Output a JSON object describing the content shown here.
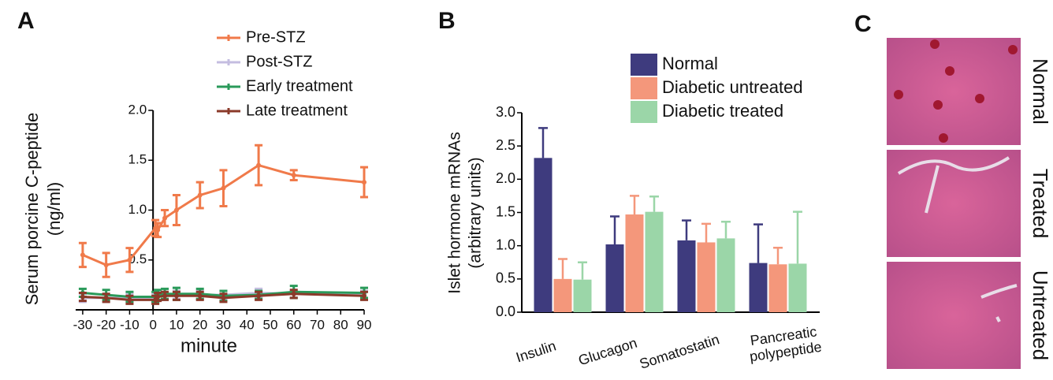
{
  "chart_data": [
    {
      "panel": "A",
      "type": "line",
      "ylabel": [
        "Serum porcine C-peptide",
        "(ng/ml)"
      ],
      "xlabel": "minute",
      "x": [
        -30,
        -20,
        -10,
        1,
        2,
        5,
        10,
        20,
        30,
        45,
        60,
        90
      ],
      "xlim": [
        -33,
        90
      ],
      "xticks": [
        -30,
        -20,
        -10,
        0,
        10,
        20,
        30,
        40,
        50,
        60,
        70,
        80,
        90
      ],
      "ylim": [
        0,
        2
      ],
      "yticks": [
        0.5,
        {
          "value": 1,
          "label": "1.0"
        },
        1.5,
        {
          "value": 2,
          "label": "2.0"
        }
      ],
      "legend": "upper right",
      "series": [
        {
          "name": "Pre-STZ",
          "color": "#f07a4a",
          "values": [
            0.55,
            0.45,
            0.5,
            0.82,
            0.8,
            0.92,
            1.0,
            1.15,
            1.22,
            1.45,
            1.35,
            1.28
          ],
          "errors": [
            0.12,
            0.12,
            0.12,
            0.08,
            0.07,
            0.08,
            0.15,
            0.13,
            0.18,
            0.2,
            0.05,
            0.15
          ]
        },
        {
          "name": "Post-STZ",
          "color": "#c4bde0",
          "values": [
            0.12,
            0.12,
            0.12,
            0.12,
            0.14,
            0.14,
            0.15,
            0.15,
            0.15,
            0.17,
            0.16,
            0.15
          ],
          "errors": [
            0.04,
            0.04,
            0.04,
            0.04,
            0.04,
            0.04,
            0.04,
            0.04,
            0.04,
            0.04,
            0.04,
            0.04
          ]
        },
        {
          "name": "Early treatment",
          "color": "#2a9a5a",
          "values": [
            0.17,
            0.15,
            0.13,
            0.13,
            0.15,
            0.16,
            0.16,
            0.16,
            0.14,
            0.15,
            0.18,
            0.17
          ],
          "errors": [
            0.04,
            0.05,
            0.05,
            0.05,
            0.05,
            0.05,
            0.06,
            0.05,
            0.05,
            0.04,
            0.06,
            0.05
          ]
        },
        {
          "name": "Late treatment",
          "color": "#8b3a2a",
          "values": [
            0.13,
            0.12,
            0.1,
            0.1,
            0.13,
            0.14,
            0.14,
            0.14,
            0.12,
            0.14,
            0.16,
            0.14
          ],
          "errors": [
            0.04,
            0.04,
            0.04,
            0.04,
            0.04,
            0.04,
            0.04,
            0.04,
            0.04,
            0.04,
            0.04,
            0.04
          ]
        }
      ]
    },
    {
      "panel": "B",
      "type": "bar",
      "ylabel": [
        "Islet hormone mRNAs",
        "(arbitrary units)"
      ],
      "categories": [
        "Insulin",
        "Glucagon",
        "Somatostatin",
        "Pancreatic polypeptide"
      ],
      "ylim": [
        0,
        3
      ],
      "yticks": [
        {
          "value": 0,
          "label": "0.0"
        },
        0.5,
        {
          "value": 1,
          "label": "1.0"
        },
        1.5,
        {
          "value": 2,
          "label": "2.0"
        },
        2.5,
        {
          "value": 3,
          "label": "3.0"
        }
      ],
      "legend": "upper right",
      "series": [
        {
          "name": "Normal",
          "color": "#3e3b7e",
          "values": [
            2.32,
            1.02,
            1.08,
            0.74
          ],
          "errors": [
            0.45,
            0.42,
            0.3,
            0.58
          ]
        },
        {
          "name": "Diabetic untreated",
          "color": "#f4977b",
          "values": [
            0.5,
            1.47,
            1.05,
            0.72
          ],
          "errors": [
            0.3,
            0.28,
            0.28,
            0.25
          ]
        },
        {
          "name": "Diabetic treated",
          "color": "#9bd6a8",
          "values": [
            0.49,
            1.51,
            1.11,
            0.73
          ],
          "errors": [
            0.26,
            0.23,
            0.25,
            0.78
          ]
        }
      ]
    },
    {
      "panel": "C",
      "type": "image",
      "labels": [
        "Normal",
        "Treated",
        "Untreated"
      ]
    }
  ]
}
